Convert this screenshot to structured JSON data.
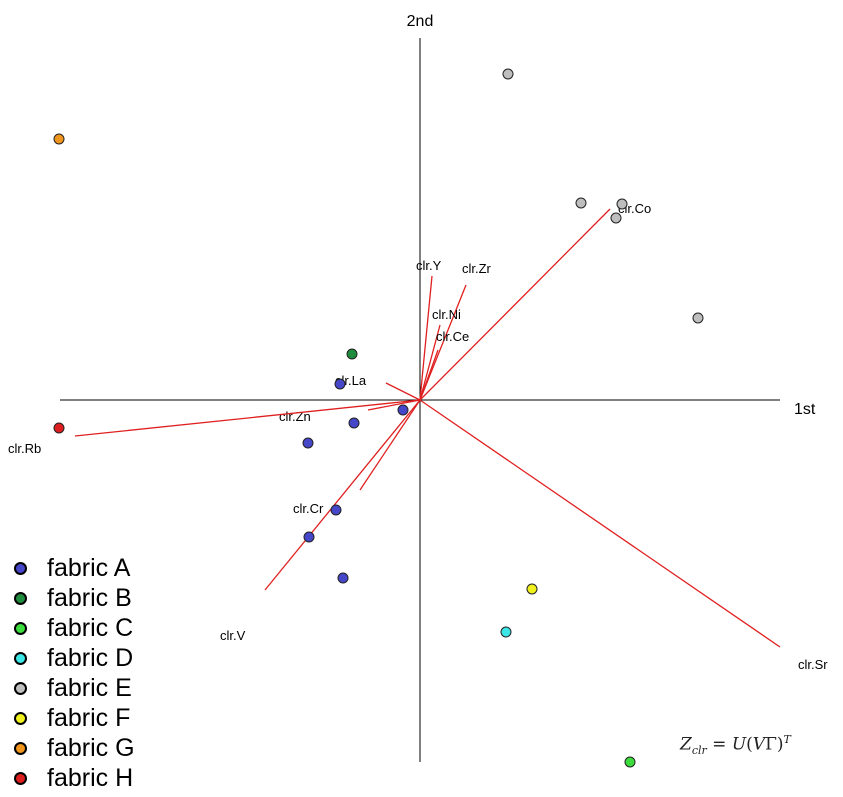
{
  "chart_data": {
    "type": "biplot",
    "axes": {
      "x_label": "1st",
      "y_label": "2nd"
    },
    "xlim": [
      -3.63,
      3.63
    ],
    "ylim": [
      -3.63,
      3.63
    ],
    "loadings": [
      {
        "name": "clr.Co",
        "x": 1.9,
        "y": 1.91
      },
      {
        "name": "clr.Y",
        "x": 0.12,
        "y": 1.24
      },
      {
        "name": "clr.Zr",
        "x": 0.46,
        "y": 1.15
      },
      {
        "name": "clr.Ni",
        "x": 0.2,
        "y": 0.75
      },
      {
        "name": "clr.Ce",
        "x": 0.18,
        "y": 0.5
      },
      {
        "name": "clr.La",
        "x": -0.34,
        "y": 0.17
      },
      {
        "name": "clr.Zn",
        "x": -0.52,
        "y": -0.1
      },
      {
        "name": "clr.Rb",
        "x": -3.45,
        "y": -0.36
      },
      {
        "name": "clr.Cr",
        "x": -0.6,
        "y": -0.9
      },
      {
        "name": "clr.V",
        "x": -1.55,
        "y": -1.9
      },
      {
        "name": "clr.Sr",
        "x": 3.6,
        "y": -2.47
      }
    ],
    "points": [
      {
        "group": "fabric A",
        "x": -0.17,
        "y": -0.1
      },
      {
        "group": "fabric A",
        "x": -0.8,
        "y": 0.16
      },
      {
        "group": "fabric A",
        "x": -0.66,
        "y": -0.23
      },
      {
        "group": "fabric A",
        "x": -1.12,
        "y": -0.43
      },
      {
        "group": "fabric A",
        "x": -0.84,
        "y": -1.1
      },
      {
        "group": "fabric A",
        "x": -1.11,
        "y": -1.37
      },
      {
        "group": "fabric A",
        "x": -0.77,
        "y": -1.78
      },
      {
        "group": "fabric B",
        "x": -0.68,
        "y": 0.46
      },
      {
        "group": "fabric C",
        "x": 2.1,
        "y": -3.62
      },
      {
        "group": "fabric D",
        "x": 0.86,
        "y": -2.32
      },
      {
        "group": "fabric E",
        "x": 0.88,
        "y": 3.26
      },
      {
        "group": "fabric E",
        "x": 1.61,
        "y": 1.97
      },
      {
        "group": "fabric E",
        "x": 1.96,
        "y": 1.82
      },
      {
        "group": "fabric E",
        "x": 2.02,
        "y": 1.96
      },
      {
        "group": "fabric E",
        "x": 2.78,
        "y": 0.82
      },
      {
        "group": "fabric F",
        "x": 1.12,
        "y": -1.89
      },
      {
        "group": "fabric G",
        "x": -3.61,
        "y": 2.61
      },
      {
        "group": "fabric H",
        "x": -3.61,
        "y": -0.28
      }
    ],
    "legend": [
      {
        "label": "fabric A",
        "color": "#4646c8"
      },
      {
        "label": "fabric B",
        "color": "#1e8c3c"
      },
      {
        "label": "fabric C",
        "color": "#3cdc3c"
      },
      {
        "label": "fabric D",
        "color": "#3ce6e6"
      },
      {
        "label": "fabric E",
        "color": "#bebebe"
      },
      {
        "label": "fabric F",
        "color": "#f0f01e"
      },
      {
        "label": "fabric G",
        "color": "#f0961e"
      },
      {
        "label": "fabric H",
        "color": "#dc1e1e"
      }
    ],
    "legend_position": "bottom-left",
    "loading_color": "#e02020",
    "annotation": "Z_clr = U(VΓ)^T",
    "grid": false
  }
}
